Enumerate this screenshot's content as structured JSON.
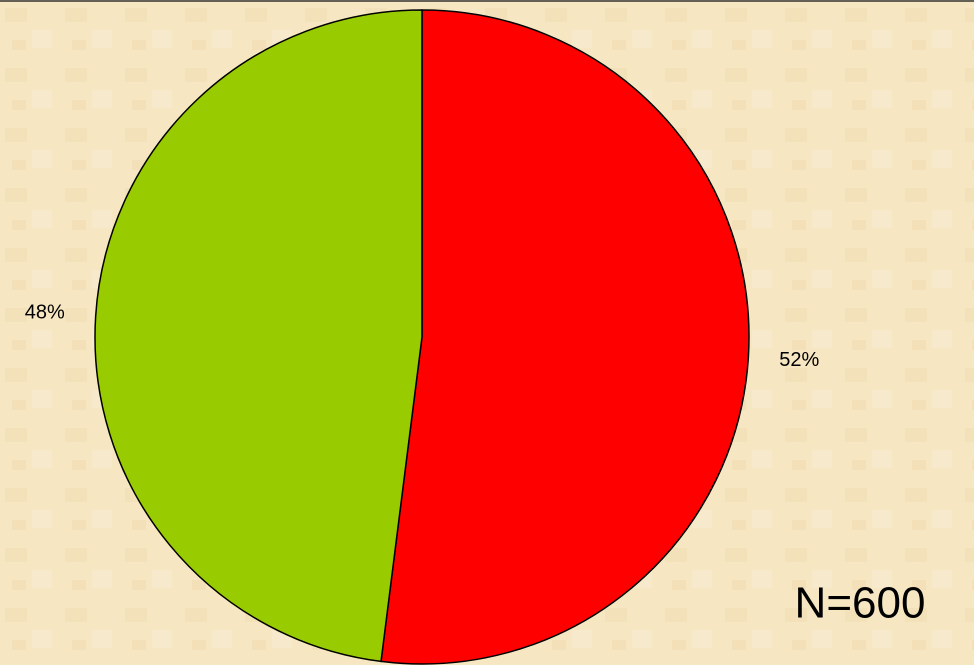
{
  "chart_data": {
    "type": "pie",
    "values": [
      52,
      48
    ],
    "value_labels": [
      "52%",
      "48%"
    ],
    "colors": [
      "#ff0000",
      "#99cc00"
    ],
    "annotation": "N=600"
  }
}
